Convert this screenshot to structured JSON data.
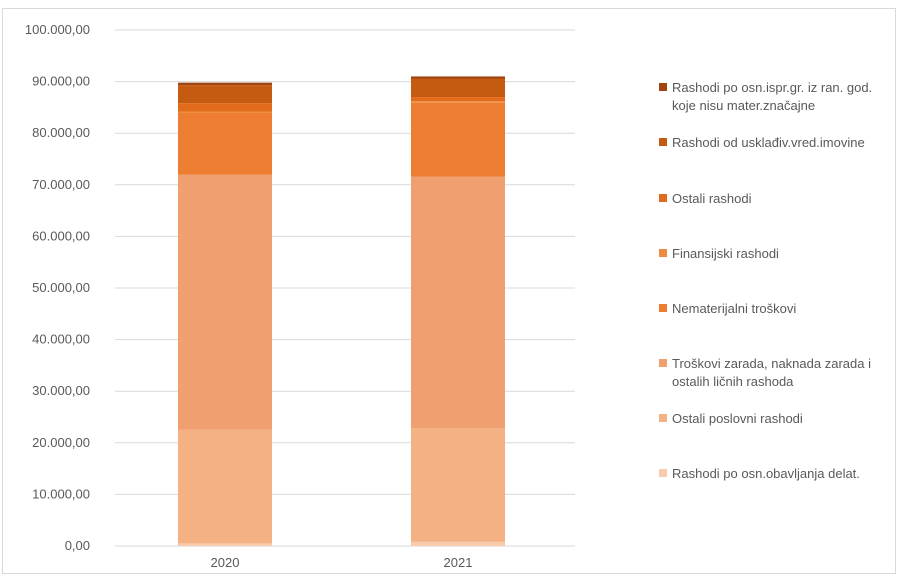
{
  "chart_data": {
    "type": "bar",
    "stacked": true,
    "categories": [
      "2020",
      "2021"
    ],
    "ylim": [
      0,
      100000
    ],
    "yticks": [
      "0,00",
      "10.000,00",
      "20.000,00",
      "30.000,00",
      "40.000,00",
      "50.000,00",
      "60.000,00",
      "70.000,00",
      "80.000,00",
      "90.000,00",
      "100.000,00"
    ],
    "grid": true,
    "legend_position": "right",
    "series": [
      {
        "name": "Rashodi po osn.obavljanja delat.",
        "color": "#f8cbad",
        "values": [
          500,
          800
        ]
      },
      {
        "name": "Ostali poslovni rashodi",
        "color": "#f4b183",
        "values": [
          22000,
          22000
        ]
      },
      {
        "name": "Troškovi zarada, naknada zarada i ostalih ličnih  rashoda",
        "color": "#f0a070",
        "values": [
          49500,
          48800
        ]
      },
      {
        "name": "Nematerijalni troškovi",
        "color": "#ed7d31",
        "values": [
          12000,
          14300
        ]
      },
      {
        "name": "Finansijski rashodi",
        "color": "#f08a3e",
        "values": [
          200,
          300
        ]
      },
      {
        "name": "Ostali rashodi",
        "color": "#e26b1b",
        "values": [
          1600,
          800
        ]
      },
      {
        "name": "Rashodi od usklađiv.vred.imovine",
        "color": "#c55a11",
        "values": [
          3500,
          3600
        ]
      },
      {
        "name": "Rashodi po osn.ispr.gr. iz ran. god. koje nisu mater.značajne",
        "color": "#a04510",
        "values": [
          500,
          400
        ]
      }
    ],
    "legend_lines": [
      [
        "Rashodi po osn.ispr.gr. iz ran. god.",
        "koje nisu mater.značajne"
      ],
      [
        "Rashodi od usklađiv.vred.imovine"
      ],
      [
        "Ostali rashodi"
      ],
      [
        "Finansijski rashodi"
      ],
      [
        "Nematerijalni troškovi"
      ],
      [
        "Troškovi zarada, naknada zarada i",
        "ostalih ličnih  rashoda"
      ],
      [
        "Ostali poslovni rashodi"
      ],
      [
        "Rashodi po osn.obavljanja delat."
      ]
    ]
  }
}
